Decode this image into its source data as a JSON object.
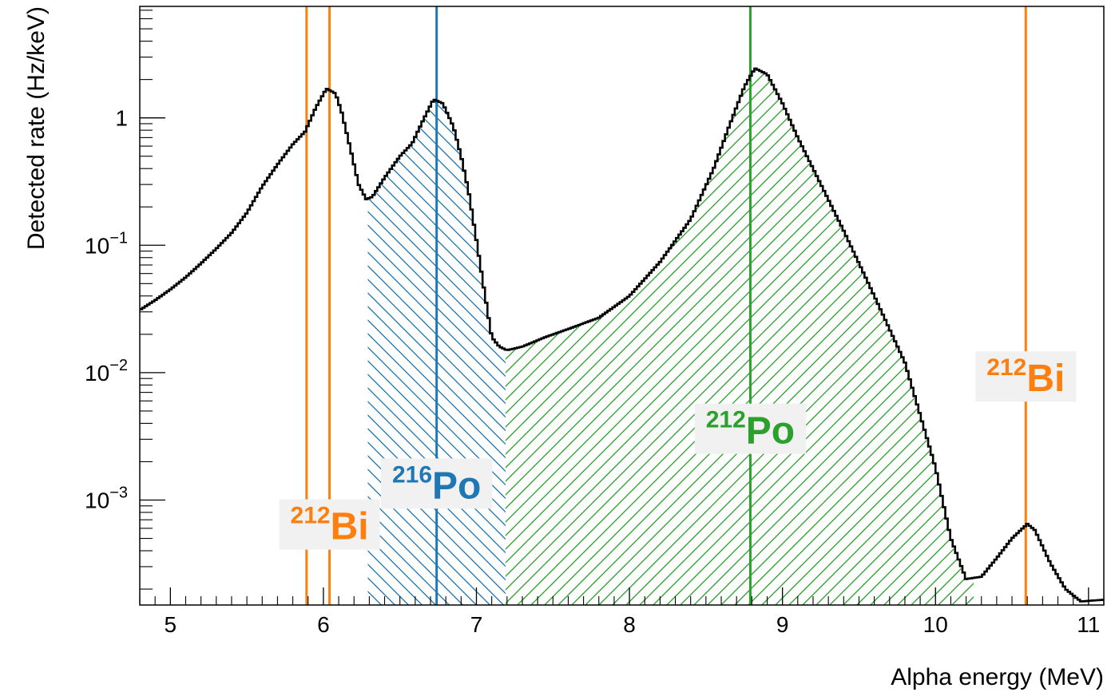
{
  "chart_data": {
    "type": "line",
    "title": "",
    "xlabel": "Alpha energy (MeV)",
    "ylabel": "Detected rate (Hz/keV)",
    "xlim": [
      4.8,
      11.1
    ],
    "ylim": [
      0.00015,
      7.5
    ],
    "yscale": "log",
    "grid": false,
    "x_ticks": [
      5,
      6,
      7,
      8,
      9,
      10,
      11
    ],
    "x_tick_labels": [
      "5",
      "6",
      "7",
      "8",
      "9",
      "10",
      "11"
    ],
    "y_ticks": [
      {
        "value": 1,
        "base": "1",
        "exp": ""
      },
      {
        "value": 0.1,
        "base": "10",
        "exp": "−1"
      },
      {
        "value": 0.01,
        "base": "10",
        "exp": "−2"
      },
      {
        "value": 0.001,
        "base": "10",
        "exp": "−3"
      }
    ],
    "series": [
      {
        "color": "#000000",
        "points": [
          [
            4.8,
            0.031
          ],
          [
            4.9,
            0.037
          ],
          [
            5.0,
            0.045
          ],
          [
            5.1,
            0.056
          ],
          [
            5.2,
            0.072
          ],
          [
            5.3,
            0.094
          ],
          [
            5.4,
            0.125
          ],
          [
            5.5,
            0.18
          ],
          [
            5.6,
            0.29
          ],
          [
            5.7,
            0.43
          ],
          [
            5.8,
            0.62
          ],
          [
            5.88,
            0.78
          ],
          [
            5.95,
            1.2
          ],
          [
            6.02,
            1.7
          ],
          [
            6.08,
            1.55
          ],
          [
            6.12,
            1.1
          ],
          [
            6.18,
            0.55
          ],
          [
            6.23,
            0.3
          ],
          [
            6.28,
            0.23
          ],
          [
            6.32,
            0.24
          ],
          [
            6.4,
            0.34
          ],
          [
            6.5,
            0.5
          ],
          [
            6.58,
            0.63
          ],
          [
            6.65,
            0.95
          ],
          [
            6.72,
            1.4
          ],
          [
            6.78,
            1.3
          ],
          [
            6.85,
            0.85
          ],
          [
            6.9,
            0.5
          ],
          [
            6.95,
            0.26
          ],
          [
            7.0,
            0.11
          ],
          [
            7.05,
            0.045
          ],
          [
            7.1,
            0.019
          ],
          [
            7.15,
            0.016
          ],
          [
            7.2,
            0.015
          ],
          [
            7.3,
            0.016
          ],
          [
            7.45,
            0.019
          ],
          [
            7.6,
            0.022
          ],
          [
            7.8,
            0.027
          ],
          [
            8.0,
            0.04
          ],
          [
            8.2,
            0.074
          ],
          [
            8.4,
            0.16
          ],
          [
            8.55,
            0.4
          ],
          [
            8.65,
            0.85
          ],
          [
            8.75,
            1.75
          ],
          [
            8.82,
            2.45
          ],
          [
            8.9,
            2.2
          ],
          [
            9.0,
            1.3
          ],
          [
            9.1,
            0.7
          ],
          [
            9.2,
            0.4
          ],
          [
            9.4,
            0.13
          ],
          [
            9.6,
            0.04
          ],
          [
            9.8,
            0.012
          ],
          [
            10.0,
            0.0018
          ],
          [
            10.1,
            0.0005
          ],
          [
            10.2,
            0.00024
          ],
          [
            10.3,
            0.00025
          ],
          [
            10.4,
            0.00035
          ],
          [
            10.5,
            0.0005
          ],
          [
            10.6,
            0.00065
          ],
          [
            10.65,
            0.00058
          ],
          [
            10.75,
            0.00032
          ],
          [
            10.85,
            0.0002
          ],
          [
            10.95,
            0.00016
          ],
          [
            11.1,
            0.000165
          ]
        ]
      }
    ],
    "shaded_regions": [
      {
        "x_range": [
          6.29,
          7.19
        ],
        "color": "#1f77b4",
        "hatch": "backslash"
      },
      {
        "x_range": [
          7.19,
          10.25
        ],
        "color": "#2ca02c",
        "hatch": "slash"
      }
    ],
    "vlines": [
      {
        "x": 5.89,
        "color": "#ff7f0e"
      },
      {
        "x": 6.04,
        "color": "#ff7f0e"
      },
      {
        "x": 6.74,
        "color": "#1f77b4"
      },
      {
        "x": 8.79,
        "color": "#2ca02c"
      },
      {
        "x": 10.59,
        "color": "#ff7f0e"
      }
    ],
    "annotations": [
      {
        "mass": "212",
        "symbol": "Bi",
        "color": "#ff7f0e",
        "x": 6.04,
        "y": 0.00062
      },
      {
        "mass": "216",
        "symbol": "Po",
        "color": "#1f77b4",
        "x": 6.74,
        "y": 0.0013
      },
      {
        "mass": "212",
        "symbol": "Po",
        "color": "#2ca02c",
        "x": 8.79,
        "y": 0.0035
      },
      {
        "mass": "212",
        "symbol": "Bi",
        "color": "#ff7f0e",
        "x": 10.59,
        "y": 0.009
      }
    ]
  }
}
